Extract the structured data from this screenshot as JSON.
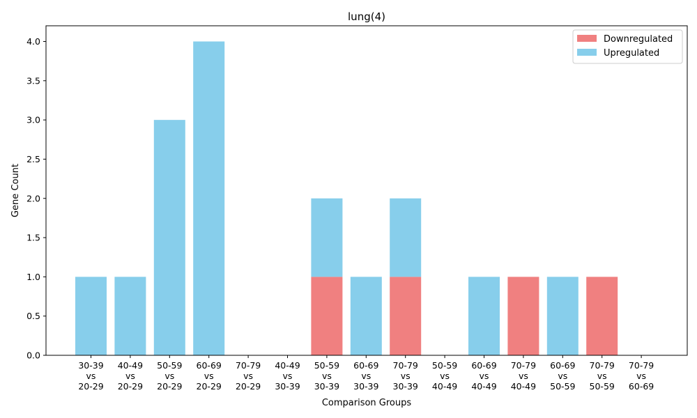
{
  "chart_data": {
    "type": "bar",
    "stacked": true,
    "title": "lung(4)",
    "xlabel": "Comparison Groups",
    "ylabel": "Gene Count",
    "ylim": [
      0,
      4.2
    ],
    "yticks": [
      "0.0",
      "0.5",
      "1.0",
      "1.5",
      "2.0",
      "2.5",
      "3.0",
      "3.5",
      "4.0"
    ],
    "categories": [
      [
        "30-39",
        "vs",
        "20-29"
      ],
      [
        "40-49",
        "vs",
        "20-29"
      ],
      [
        "50-59",
        "vs",
        "20-29"
      ],
      [
        "60-69",
        "vs",
        "20-29"
      ],
      [
        "70-79",
        "vs",
        "20-29"
      ],
      [
        "40-49",
        "vs",
        "30-39"
      ],
      [
        "50-59",
        "vs",
        "30-39"
      ],
      [
        "60-69",
        "vs",
        "30-39"
      ],
      [
        "70-79",
        "vs",
        "30-39"
      ],
      [
        "50-59",
        "vs",
        "40-49"
      ],
      [
        "60-69",
        "vs",
        "40-49"
      ],
      [
        "70-79",
        "vs",
        "40-49"
      ],
      [
        "60-69",
        "vs",
        "50-59"
      ],
      [
        "70-79",
        "vs",
        "50-59"
      ],
      [
        "70-79",
        "vs",
        "60-69"
      ]
    ],
    "series": [
      {
        "name": "Downregulated",
        "color": "#f08080",
        "values": [
          0,
          0,
          0,
          0,
          0,
          0,
          1,
          0,
          1,
          0,
          0,
          1,
          0,
          1,
          0
        ]
      },
      {
        "name": "Upregulated",
        "color": "#87ceeb",
        "values": [
          1,
          1,
          3,
          4,
          0,
          0,
          1,
          1,
          1,
          0,
          1,
          0,
          1,
          0,
          0
        ]
      }
    ],
    "legend_position": "top-right",
    "grid": false
  }
}
